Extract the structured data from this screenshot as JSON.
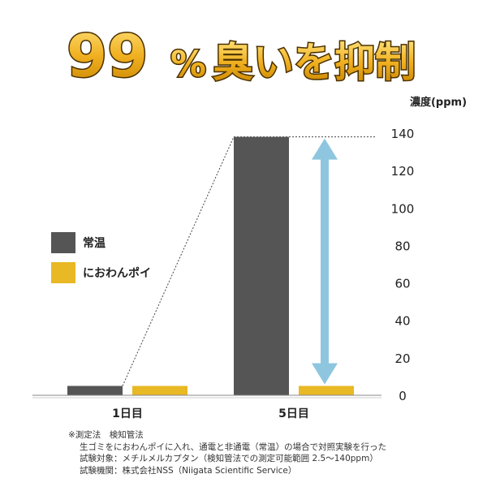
{
  "headline": {
    "big_number": "99",
    "percent": "%",
    "rest": "臭いを抑制"
  },
  "colors": {
    "jonon": "#555555",
    "product": "#e8b825",
    "arrow": "#8ec6df",
    "headline_fill": "#e0a820",
    "headline_stroke": "#5a3a00"
  },
  "chart_data": {
    "type": "bar",
    "categories": [
      "1日目",
      "5日目"
    ],
    "series": [
      {
        "name": "常温",
        "values": [
          5,
          138
        ],
        "color": "#555555"
      },
      {
        "name": "におわんポイ",
        "values": [
          5,
          5
        ],
        "color": "#e8b825"
      }
    ],
    "ylabel": "濃度(ppm)",
    "ylim": [
      0,
      140
    ],
    "yticks": [
      0,
      20,
      40,
      60,
      80,
      100,
      120,
      140
    ],
    "legend_position": "left",
    "annotation": "double-arrow between 5日目 values",
    "grid": false
  },
  "notes": {
    "title": "※測定法　検知管法",
    "lines": [
      "生ゴミをにおわんポイに入れ、通電と非通電（常温）の場合で対照実験を行った",
      "試験対象：メチルメルカプタン（検知管法での測定可能範囲 2.5〜140ppm）",
      "試験機関：株式会社NSS（Niigata Scientific Service）"
    ]
  }
}
